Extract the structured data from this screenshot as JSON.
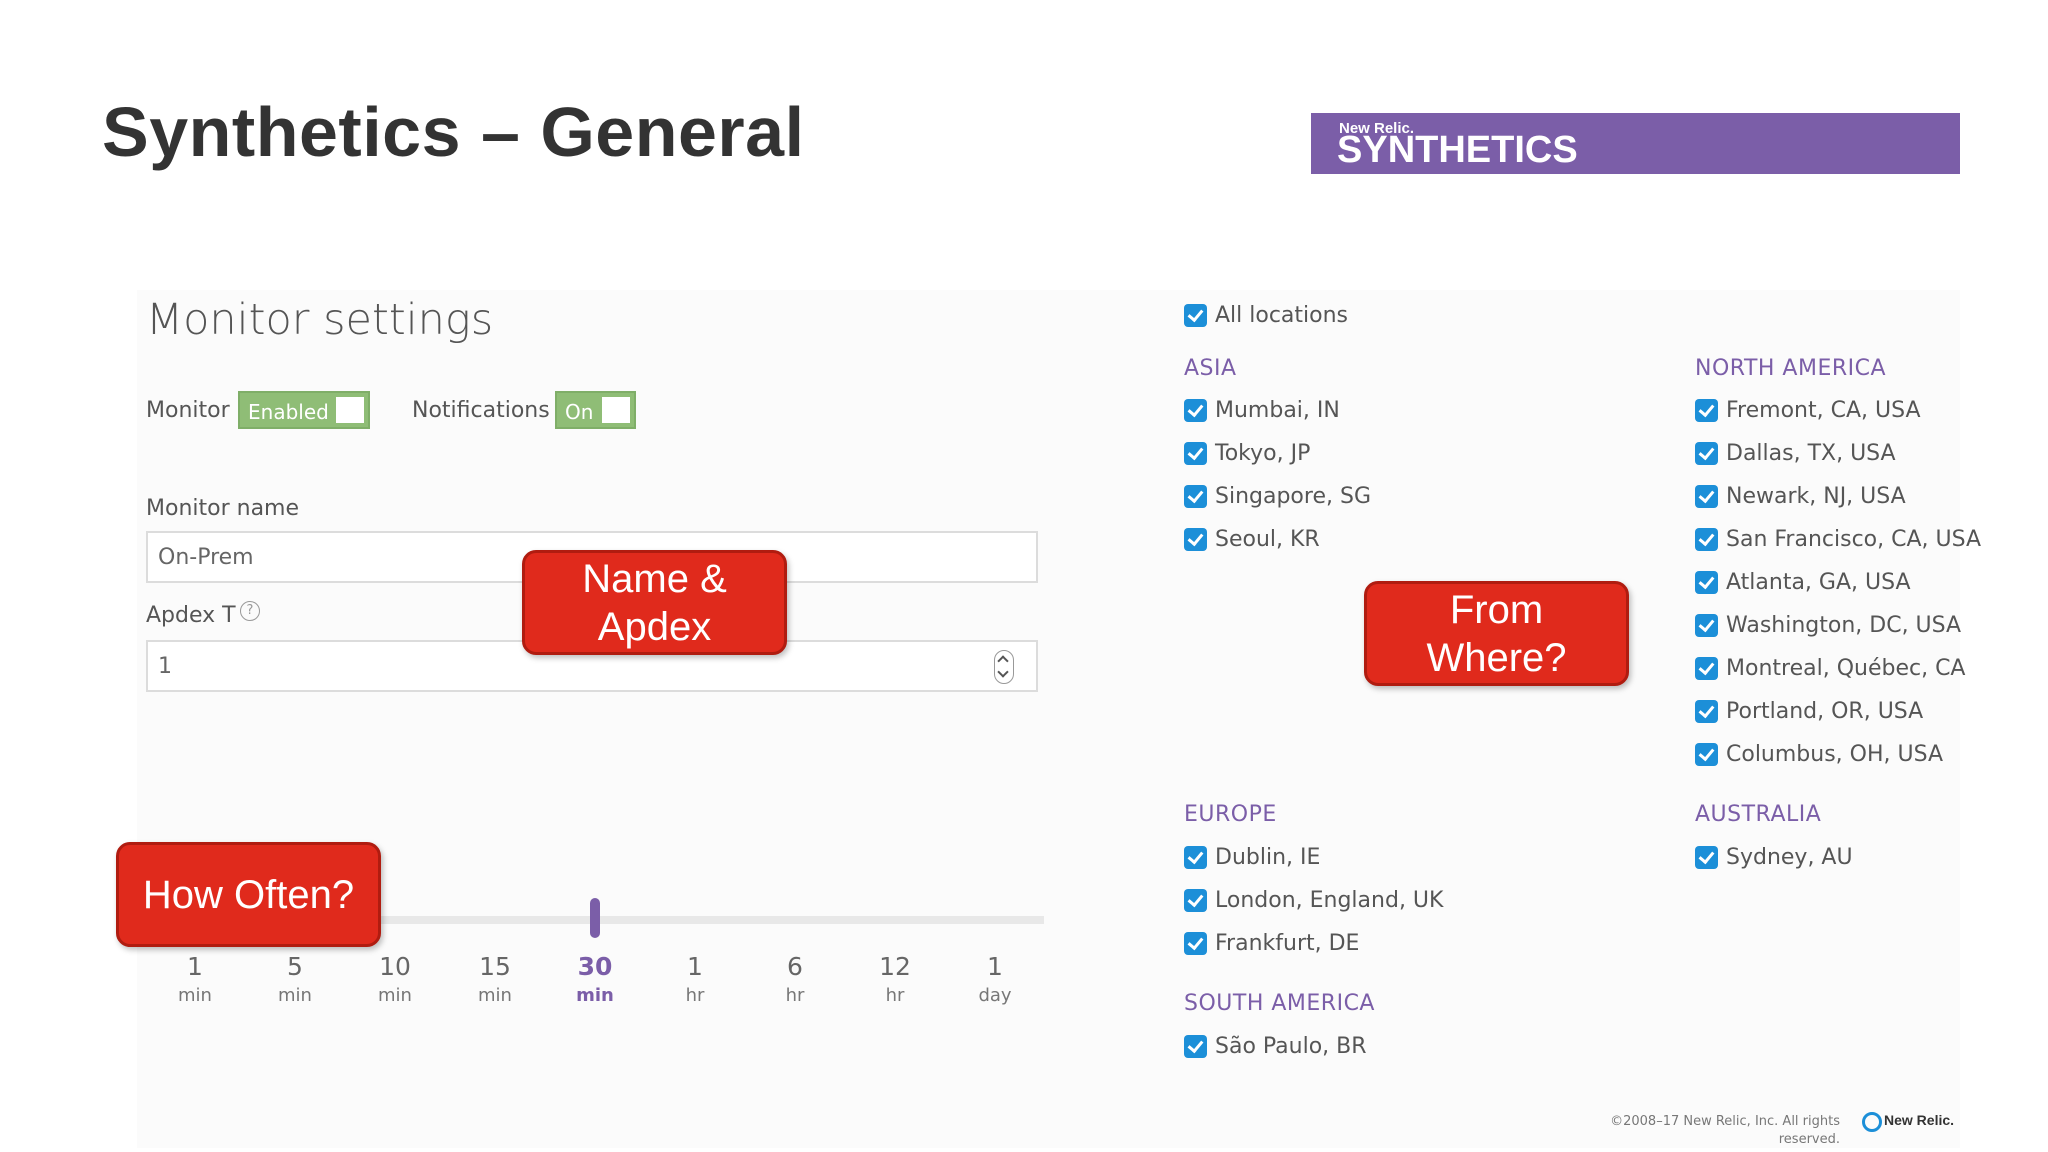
{
  "slide": {
    "title": "Synthetics – General",
    "banner_small": "New Relic.",
    "banner_big": "SYNTHETICS"
  },
  "monitor_settings": {
    "title": "Monitor settings",
    "monitor_label": "Monitor",
    "monitor_toggle": "Enabled",
    "notifications_label": "Notifications",
    "notifications_toggle": "On",
    "name_label": "Monitor name",
    "name_value": "On-Prem",
    "apdex_label": "Apdex T",
    "apdex_help": "?",
    "apdex_value": "1"
  },
  "frequency": {
    "selected_index": 4,
    "ticks": [
      {
        "num": "1",
        "unit": "min"
      },
      {
        "num": "5",
        "unit": "min"
      },
      {
        "num": "10",
        "unit": "min"
      },
      {
        "num": "15",
        "unit": "min"
      },
      {
        "num": "30",
        "unit": "min"
      },
      {
        "num": "1",
        "unit": "hr"
      },
      {
        "num": "6",
        "unit": "hr"
      },
      {
        "num": "12",
        "unit": "hr"
      },
      {
        "num": "1",
        "unit": "day"
      }
    ]
  },
  "callouts": {
    "name_apdex": [
      "Name &",
      "Apdex"
    ],
    "from_where": [
      "From",
      "Where?"
    ],
    "how_often": "How Often?"
  },
  "locations": {
    "all_label": "All locations",
    "asia": {
      "title": "ASIA",
      "items": [
        "Mumbai, IN",
        "Tokyo, JP",
        "Singapore, SG",
        "Seoul, KR"
      ]
    },
    "north_america": {
      "title": "NORTH AMERICA",
      "items": [
        "Fremont, CA, USA",
        "Dallas, TX, USA",
        "Newark, NJ, USA",
        "San Francisco, CA, USA",
        "Atlanta, GA, USA",
        "Washington, DC, USA",
        "Montreal, Québec, CA",
        "Portland, OR, USA",
        "Columbus, OH, USA"
      ]
    },
    "europe": {
      "title": "EUROPE",
      "items": [
        "Dublin, IE",
        "London, England, UK",
        "Frankfurt, DE"
      ]
    },
    "south_america": {
      "title": "SOUTH AMERICA",
      "items": [
        "São Paulo, BR"
      ]
    },
    "australia": {
      "title": "AUSTRALIA",
      "items": [
        "Sydney, AU"
      ]
    }
  },
  "footer": {
    "copyright_line1": "©2008–17 New Relic, Inc. All rights",
    "copyright_line2": "reserved.",
    "logo_text": "New Relic."
  },
  "colors": {
    "accent_purple": "#7b5ea8",
    "toggle_green": "#8fbd76",
    "callout_red": "#e02a1c",
    "checkbox_blue": "#1c8fd8"
  }
}
